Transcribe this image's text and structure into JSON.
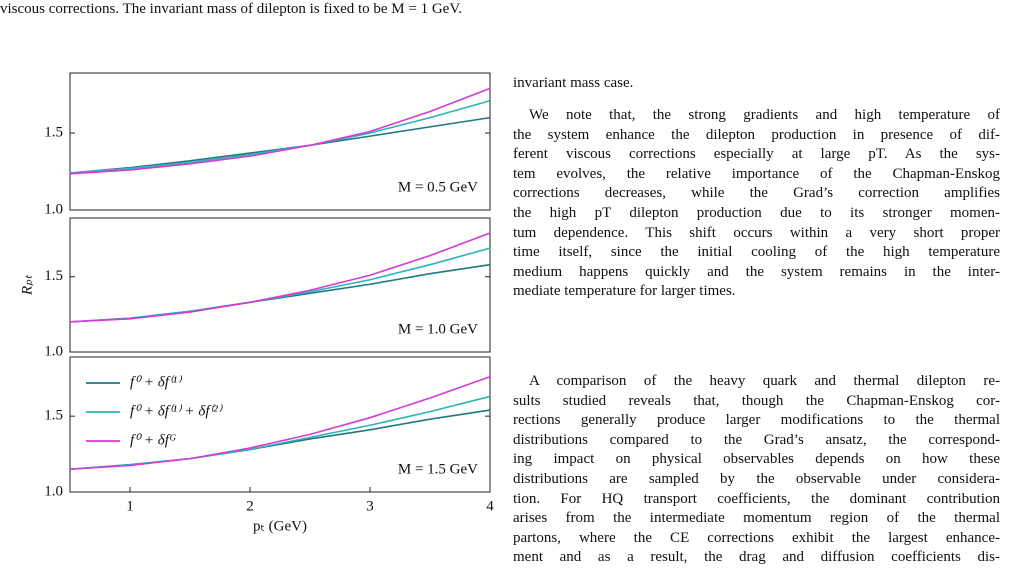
{
  "caption": "viscous corrections. The invariant mass of dilepton is fixed to be M = 1 GeV.",
  "chart_data": [
    {
      "type": "line",
      "annotation": "M = 0.5 GeV",
      "x": [
        0.5,
        1,
        1.5,
        2,
        2.5,
        3,
        3.5,
        4
      ],
      "xlim": [
        0.5,
        4
      ],
      "ylim": [
        1.0,
        1.89
      ],
      "yticks": [
        {
          "value": 1.0,
          "label": "1.0"
        },
        1.5
      ],
      "series": [
        {
          "color": "#1f7a80",
          "values": [
            1.24,
            1.275,
            1.32,
            1.37,
            1.42,
            1.48,
            1.54,
            1.6
          ]
        },
        {
          "color": "#2bb5b5",
          "values": [
            1.24,
            1.27,
            1.31,
            1.36,
            1.42,
            1.5,
            1.6,
            1.71
          ]
        },
        {
          "color": "#d63ad6",
          "values": [
            1.235,
            1.26,
            1.3,
            1.35,
            1.42,
            1.51,
            1.64,
            1.79
          ]
        }
      ]
    },
    {
      "type": "line",
      "annotation": "M = 1.0 GeV",
      "ylabel": "Rₚₜ",
      "x": [
        0.5,
        1,
        1.5,
        2,
        2.5,
        3,
        3.5,
        4
      ],
      "xlim": [
        0.5,
        4
      ],
      "ylim": [
        1.0,
        1.89
      ],
      "yticks": [
        {
          "value": 1.0,
          "label": "1.0"
        },
        1.5
      ],
      "series": [
        {
          "color": "#1f7a80",
          "values": [
            1.2,
            1.225,
            1.27,
            1.33,
            1.39,
            1.45,
            1.52,
            1.58
          ]
        },
        {
          "color": "#2bb5b5",
          "values": [
            1.2,
            1.225,
            1.27,
            1.33,
            1.4,
            1.48,
            1.58,
            1.69
          ]
        },
        {
          "color": "#d63ad6",
          "values": [
            1.2,
            1.22,
            1.265,
            1.33,
            1.41,
            1.51,
            1.64,
            1.79
          ]
        }
      ]
    },
    {
      "type": "line",
      "annotation": "M = 1.5 GeV",
      "xlabel": "pₜ (GeV)",
      "x": [
        0.5,
        1,
        1.5,
        2,
        2.5,
        3,
        3.5,
        4
      ],
      "xlim": [
        0.5,
        4
      ],
      "xticks": [
        1,
        2,
        3,
        4
      ],
      "ylim": [
        1.0,
        1.89
      ],
      "yticks": [
        {
          "value": 1.0,
          "label": "1.0"
        },
        1.5
      ],
      "legend": "upper left",
      "series": [
        {
          "name": "f⁰ + δf⁽¹⁾",
          "color": "#1f7a80",
          "values": [
            1.15,
            1.18,
            1.22,
            1.28,
            1.35,
            1.41,
            1.48,
            1.54
          ]
        },
        {
          "name": "f⁰ + δf⁽¹⁾ + δf⁽²⁾",
          "color": "#2bb5b5",
          "values": [
            1.15,
            1.18,
            1.22,
            1.28,
            1.36,
            1.44,
            1.53,
            1.63
          ]
        },
        {
          "name": "f⁰ + δfᴳ",
          "color": "#d63ad6",
          "values": [
            1.15,
            1.175,
            1.22,
            1.29,
            1.38,
            1.49,
            1.62,
            1.76
          ]
        }
      ]
    }
  ],
  "paragraphs": [
    [
      "invariant mass case."
    ],
    [
      "We note that, the strong gradients and high temperature of",
      "the system enhance the dilepton production in presence of dif-",
      "ferent viscous corrections especially at large pT. As the sys-",
      "tem evolves, the relative importance of the Chapman-Enskog",
      "corrections decreases, while the Grad’s correction amplifies",
      "the high pT dilepton production due to its stronger momen-",
      "tum dependence. This shift occurs within a very short proper",
      "time itself, since the initial cooling of the high temperature",
      "medium happens quickly and the system remains in the inter-",
      "mediate temperature for larger times."
    ],
    [
      "A comparison of the heavy quark and thermal dilepton re-",
      "sults studied reveals that, though the Chapman-Enskog cor-",
      "rections generally produce larger modifications to the thermal",
      "distributions compared to the Grad’s ansatz, the correspond-",
      "ing impact on physical observables depends on how these",
      "distributions are sampled by the observable under considera-",
      "tion. For HQ transport coefficients, the dominant contribution",
      "arises from the intermediate momentum region of the thermal",
      "partons, where the CE corrections exhibit the largest enhance-",
      "ment and as a result, the drag and diffusion coefficients dis-"
    ]
  ]
}
